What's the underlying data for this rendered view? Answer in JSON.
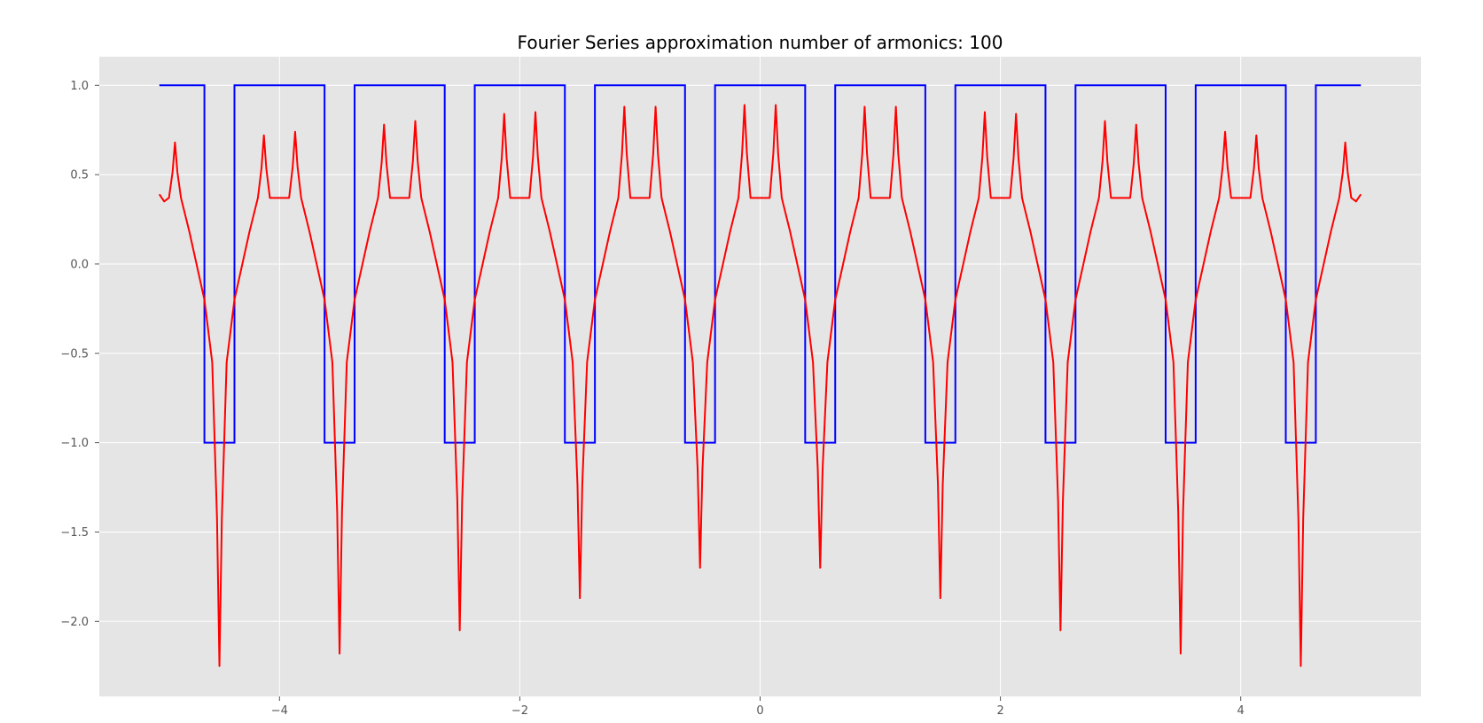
{
  "chart_data": {
    "type": "line",
    "title": "Fourier Series approximation number of armonics: 100",
    "xlabel": "",
    "ylabel": "",
    "xlim": [
      -5.5,
      5.5
    ],
    "ylim": [
      -2.42,
      1.16
    ],
    "grid": true,
    "legend": "none",
    "x_ticks": [
      -4,
      -2,
      0,
      2,
      4
    ],
    "x_tick_labels": [
      "−4",
      "−2",
      "0",
      "2",
      "4"
    ],
    "y_ticks": [
      1.0,
      0.5,
      0.0,
      -0.5,
      -1.0,
      -1.5,
      -2.0
    ],
    "y_tick_labels": [
      "1.0",
      "0.5",
      "0.0",
      "−0.5",
      "−1.0",
      "−1.5",
      "−2.0"
    ],
    "series": [
      {
        "color": "#0000ff",
        "x": [
          -5.0,
          -4.625,
          -4.625,
          -4.375,
          -4.375,
          -3.625,
          -3.625,
          -3.375,
          -3.375,
          -2.625,
          -2.625,
          -2.375,
          -2.375,
          -1.625,
          -1.625,
          -1.375,
          -1.375,
          -0.625,
          -0.625,
          -0.375,
          -0.375,
          0.375,
          0.375,
          0.625,
          0.625,
          1.375,
          1.375,
          1.625,
          1.625,
          2.375,
          2.375,
          2.625,
          2.625,
          3.375,
          3.375,
          3.625,
          3.625,
          4.375,
          4.375,
          4.625,
          4.625,
          5.0
        ],
        "y": [
          1,
          1,
          -1,
          -1,
          1,
          1,
          -1,
          -1,
          1,
          1,
          -1,
          -1,
          1,
          1,
          -1,
          -1,
          1,
          1,
          -1,
          -1,
          1,
          1,
          -1,
          -1,
          1,
          1,
          -1,
          -1,
          1,
          1,
          -1,
          -1,
          1,
          1,
          -1,
          -1,
          1,
          1,
          -1,
          -1,
          1,
          1
        ]
      },
      {
        "color": "#ff0000",
        "spike_x": [
          -4.5,
          -3.5,
          -2.5,
          -1.5,
          -0.5,
          0.5,
          1.5,
          2.5,
          3.5,
          4.5
        ],
        "spike_y": [
          -2.25,
          -2.18,
          -2.05,
          -1.87,
          -1.7,
          -1.7,
          -1.87,
          -2.05,
          -2.18,
          -2.25
        ],
        "peak_x": [
          -4.87,
          -4.13,
          -3.87,
          -3.13,
          -2.87,
          -2.13,
          -1.87,
          -1.13,
          -0.87,
          -0.13,
          0.13,
          0.87,
          1.13,
          1.87,
          2.13,
          2.87,
          3.13,
          3.87,
          4.13,
          4.87
        ],
        "peak_y": [
          0.68,
          0.72,
          0.74,
          0.78,
          0.8,
          0.84,
          0.85,
          0.88,
          0.88,
          0.89,
          0.89,
          0.88,
          0.88,
          0.85,
          0.84,
          0.8,
          0.78,
          0.74,
          0.72,
          0.68
        ],
        "plateau_y": 0.35,
        "crossing_y": -0.2
      }
    ]
  }
}
